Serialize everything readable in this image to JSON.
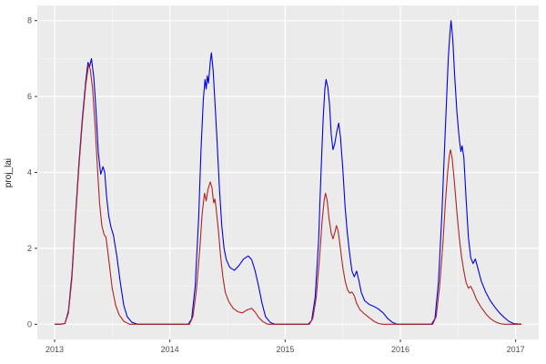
{
  "chart_data": {
    "type": "line",
    "title": "",
    "xlabel": "",
    "ylabel": "proj_lai",
    "grid": true,
    "legend": "none",
    "panel_bg": "#EBEBEB",
    "grid_major_color": "#FFFFFF",
    "grid_minor_color": "#F5F5F5",
    "tick_color": "#333333",
    "tick_label_color": "#4D4D4D",
    "axis_title_color": "#1A1A1A",
    "xlim": [
      2012.85,
      2017.2
    ],
    "ylim": [
      -0.4,
      8.4
    ],
    "x_ticks": {
      "values": [
        2013,
        2014,
        2015,
        2016,
        2017
      ],
      "labels": [
        "2013",
        "2014",
        "2015",
        "2016",
        "2017"
      ]
    },
    "x_minor": [
      2013.5,
      2014.5,
      2015.5,
      2016.5
    ],
    "y_ticks": {
      "values": [
        0,
        2,
        4,
        6,
        8
      ],
      "labels": [
        "0",
        "2",
        "4",
        "6",
        "8"
      ]
    },
    "y_minor": [
      1,
      3,
      5,
      7
    ],
    "series": [
      {
        "name": "blue",
        "color": "#0000E6",
        "points": [
          [
            2013.0,
            0
          ],
          [
            2013.05,
            0
          ],
          [
            2013.09,
            0.02
          ],
          [
            2013.12,
            0.35
          ],
          [
            2013.15,
            1.3
          ],
          [
            2013.18,
            2.8
          ],
          [
            2013.21,
            4.2
          ],
          [
            2013.24,
            5.4
          ],
          [
            2013.27,
            6.4
          ],
          [
            2013.29,
            6.9
          ],
          [
            2013.305,
            6.8
          ],
          [
            2013.32,
            7.0
          ],
          [
            2013.34,
            6.5
          ],
          [
            2013.36,
            5.6
          ],
          [
            2013.38,
            4.5
          ],
          [
            2013.4,
            3.95
          ],
          [
            2013.42,
            4.15
          ],
          [
            2013.435,
            4.0
          ],
          [
            2013.45,
            3.4
          ],
          [
            2013.47,
            2.85
          ],
          [
            2013.49,
            2.55
          ],
          [
            2013.51,
            2.35
          ],
          [
            2013.54,
            1.8
          ],
          [
            2013.57,
            1.1
          ],
          [
            2013.6,
            0.5
          ],
          [
            2013.63,
            0.2
          ],
          [
            2013.67,
            0.05
          ],
          [
            2013.72,
            0
          ],
          [
            2014.16,
            0
          ],
          [
            2014.19,
            0.15
          ],
          [
            2014.22,
            1.0
          ],
          [
            2014.25,
            2.8
          ],
          [
            2014.27,
            4.6
          ],
          [
            2014.29,
            5.9
          ],
          [
            2014.305,
            6.45
          ],
          [
            2014.315,
            6.2
          ],
          [
            2014.325,
            6.55
          ],
          [
            2014.335,
            6.35
          ],
          [
            2014.35,
            6.9
          ],
          [
            2014.36,
            7.15
          ],
          [
            2014.375,
            6.7
          ],
          [
            2014.39,
            5.9
          ],
          [
            2014.41,
            4.8
          ],
          [
            2014.43,
            3.6
          ],
          [
            2014.45,
            2.6
          ],
          [
            2014.47,
            2.0
          ],
          [
            2014.49,
            1.7
          ],
          [
            2014.52,
            1.5
          ],
          [
            2014.56,
            1.42
          ],
          [
            2014.6,
            1.55
          ],
          [
            2014.64,
            1.72
          ],
          [
            2014.68,
            1.8
          ],
          [
            2014.71,
            1.7
          ],
          [
            2014.74,
            1.4
          ],
          [
            2014.77,
            1.0
          ],
          [
            2014.8,
            0.55
          ],
          [
            2014.83,
            0.2
          ],
          [
            2014.87,
            0.05
          ],
          [
            2014.91,
            0
          ],
          [
            2015.2,
            0
          ],
          [
            2015.23,
            0.1
          ],
          [
            2015.26,
            0.7
          ],
          [
            2015.29,
            2.2
          ],
          [
            2015.31,
            3.9
          ],
          [
            2015.33,
            5.4
          ],
          [
            2015.345,
            6.2
          ],
          [
            2015.355,
            6.45
          ],
          [
            2015.37,
            6.25
          ],
          [
            2015.385,
            5.8
          ],
          [
            2015.4,
            5.0
          ],
          [
            2015.415,
            4.6
          ],
          [
            2015.43,
            4.75
          ],
          [
            2015.45,
            5.1
          ],
          [
            2015.465,
            5.3
          ],
          [
            2015.48,
            4.95
          ],
          [
            2015.5,
            4.1
          ],
          [
            2015.52,
            3.1
          ],
          [
            2015.54,
            2.4
          ],
          [
            2015.56,
            1.85
          ],
          [
            2015.58,
            1.4
          ],
          [
            2015.6,
            1.25
          ],
          [
            2015.62,
            1.4
          ],
          [
            2015.64,
            1.15
          ],
          [
            2015.66,
            0.85
          ],
          [
            2015.69,
            0.62
          ],
          [
            2015.73,
            0.52
          ],
          [
            2015.77,
            0.47
          ],
          [
            2015.81,
            0.4
          ],
          [
            2015.85,
            0.3
          ],
          [
            2015.89,
            0.15
          ],
          [
            2015.93,
            0.05
          ],
          [
            2015.97,
            0
          ],
          [
            2016.27,
            0
          ],
          [
            2016.3,
            0.15
          ],
          [
            2016.33,
            1.1
          ],
          [
            2016.36,
            2.9
          ],
          [
            2016.38,
            4.4
          ],
          [
            2016.4,
            5.9
          ],
          [
            2016.415,
            7.0
          ],
          [
            2016.43,
            7.7
          ],
          [
            2016.44,
            8.0
          ],
          [
            2016.455,
            7.5
          ],
          [
            2016.47,
            6.6
          ],
          [
            2016.49,
            5.6
          ],
          [
            2016.51,
            4.9
          ],
          [
            2016.525,
            4.55
          ],
          [
            2016.535,
            4.7
          ],
          [
            2016.55,
            4.4
          ],
          [
            2016.57,
            3.3
          ],
          [
            2016.59,
            2.3
          ],
          [
            2016.61,
            1.75
          ],
          [
            2016.63,
            1.6
          ],
          [
            2016.65,
            1.72
          ],
          [
            2016.67,
            1.5
          ],
          [
            2016.7,
            1.15
          ],
          [
            2016.74,
            0.85
          ],
          [
            2016.78,
            0.62
          ],
          [
            2016.82,
            0.45
          ],
          [
            2016.86,
            0.3
          ],
          [
            2016.9,
            0.18
          ],
          [
            2016.94,
            0.08
          ],
          [
            2016.98,
            0.02
          ],
          [
            2017.05,
            0
          ]
        ]
      },
      {
        "name": "red",
        "color": "#B22222",
        "points": [
          [
            2013.0,
            0
          ],
          [
            2013.05,
            0
          ],
          [
            2013.09,
            0.02
          ],
          [
            2013.12,
            0.3
          ],
          [
            2013.15,
            1.2
          ],
          [
            2013.18,
            2.7
          ],
          [
            2013.21,
            4.1
          ],
          [
            2013.24,
            5.3
          ],
          [
            2013.27,
            6.3
          ],
          [
            2013.295,
            6.85
          ],
          [
            2013.31,
            6.7
          ],
          [
            2013.33,
            6.2
          ],
          [
            2013.35,
            5.3
          ],
          [
            2013.37,
            4.2
          ],
          [
            2013.39,
            3.2
          ],
          [
            2013.41,
            2.6
          ],
          [
            2013.43,
            2.35
          ],
          [
            2013.445,
            2.3
          ],
          [
            2013.46,
            1.95
          ],
          [
            2013.48,
            1.45
          ],
          [
            2013.5,
            0.95
          ],
          [
            2013.53,
            0.5
          ],
          [
            2013.56,
            0.25
          ],
          [
            2013.6,
            0.08
          ],
          [
            2013.65,
            0
          ],
          [
            2014.17,
            0
          ],
          [
            2014.2,
            0.2
          ],
          [
            2014.23,
            0.9
          ],
          [
            2014.26,
            2.0
          ],
          [
            2014.28,
            2.9
          ],
          [
            2014.3,
            3.45
          ],
          [
            2014.315,
            3.25
          ],
          [
            2014.33,
            3.55
          ],
          [
            2014.35,
            3.75
          ],
          [
            2014.365,
            3.6
          ],
          [
            2014.38,
            3.2
          ],
          [
            2014.39,
            3.3
          ],
          [
            2014.4,
            3.1
          ],
          [
            2014.42,
            2.5
          ],
          [
            2014.44,
            1.8
          ],
          [
            2014.46,
            1.25
          ],
          [
            2014.48,
            0.85
          ],
          [
            2014.51,
            0.6
          ],
          [
            2014.55,
            0.42
          ],
          [
            2014.59,
            0.33
          ],
          [
            2014.63,
            0.3
          ],
          [
            2014.67,
            0.38
          ],
          [
            2014.71,
            0.42
          ],
          [
            2014.74,
            0.32
          ],
          [
            2014.77,
            0.18
          ],
          [
            2014.81,
            0.06
          ],
          [
            2014.85,
            0
          ],
          [
            2015.21,
            0
          ],
          [
            2015.24,
            0.15
          ],
          [
            2015.27,
            0.7
          ],
          [
            2015.3,
            1.8
          ],
          [
            2015.32,
            2.7
          ],
          [
            2015.34,
            3.3
          ],
          [
            2015.35,
            3.45
          ],
          [
            2015.365,
            3.25
          ],
          [
            2015.38,
            2.8
          ],
          [
            2015.4,
            2.4
          ],
          [
            2015.415,
            2.25
          ],
          [
            2015.43,
            2.4
          ],
          [
            2015.445,
            2.6
          ],
          [
            2015.46,
            2.45
          ],
          [
            2015.48,
            2.0
          ],
          [
            2015.5,
            1.5
          ],
          [
            2015.52,
            1.15
          ],
          [
            2015.54,
            0.92
          ],
          [
            2015.56,
            0.82
          ],
          [
            2015.58,
            0.85
          ],
          [
            2015.6,
            0.75
          ],
          [
            2015.62,
            0.55
          ],
          [
            2015.65,
            0.38
          ],
          [
            2015.69,
            0.27
          ],
          [
            2015.73,
            0.17
          ],
          [
            2015.77,
            0.08
          ],
          [
            2015.81,
            0.02
          ],
          [
            2015.85,
            0
          ],
          [
            2016.28,
            0
          ],
          [
            2016.31,
            0.2
          ],
          [
            2016.34,
            1.0
          ],
          [
            2016.37,
            2.2
          ],
          [
            2016.39,
            3.2
          ],
          [
            2016.41,
            4.0
          ],
          [
            2016.425,
            4.45
          ],
          [
            2016.435,
            4.6
          ],
          [
            2016.45,
            4.35
          ],
          [
            2016.47,
            3.7
          ],
          [
            2016.49,
            2.95
          ],
          [
            2016.51,
            2.3
          ],
          [
            2016.53,
            1.8
          ],
          [
            2016.55,
            1.4
          ],
          [
            2016.57,
            1.1
          ],
          [
            2016.59,
            0.95
          ],
          [
            2016.61,
            1.0
          ],
          [
            2016.63,
            0.88
          ],
          [
            2016.66,
            0.65
          ],
          [
            2016.7,
            0.45
          ],
          [
            2016.74,
            0.28
          ],
          [
            2016.78,
            0.15
          ],
          [
            2016.82,
            0.07
          ],
          [
            2016.86,
            0.02
          ],
          [
            2016.9,
            0
          ],
          [
            2017.05,
            0
          ]
        ]
      }
    ]
  }
}
